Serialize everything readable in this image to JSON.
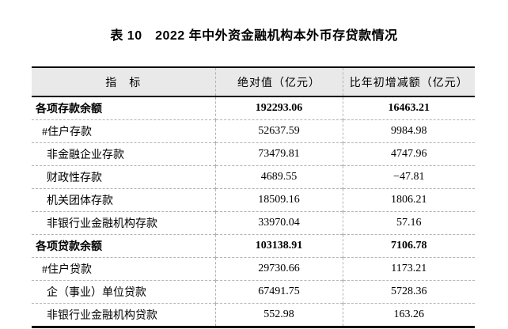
{
  "title": "表 10　2022 年中外资金融机构本外币存贷款情况",
  "table": {
    "headers": [
      "指　标",
      "绝对值（亿元）",
      "比年初增减额（亿元）"
    ],
    "rows": [
      {
        "label": "各项存款余额",
        "absolute": "192293.06",
        "change": "16463.21",
        "bold": true,
        "indent": 0
      },
      {
        "label": "#住户存款",
        "absolute": "52637.59",
        "change": "9984.98",
        "bold": false,
        "indent": 1
      },
      {
        "label": "非金融企业存款",
        "absolute": "73479.81",
        "change": "4747.96",
        "bold": false,
        "indent": 2
      },
      {
        "label": "财政性存款",
        "absolute": "4689.55",
        "change": "−47.81",
        "bold": false,
        "indent": 2
      },
      {
        "label": "机关团体存款",
        "absolute": "18509.16",
        "change": "1806.21",
        "bold": false,
        "indent": 2
      },
      {
        "label": "非银行业金融机构存款",
        "absolute": "33970.04",
        "change": "57.16",
        "bold": false,
        "indent": 2
      },
      {
        "label": "各项贷款余额",
        "absolute": "103138.91",
        "change": "7106.78",
        "bold": true,
        "indent": 0
      },
      {
        "label": "#住户贷款",
        "absolute": "29730.66",
        "change": "1173.21",
        "bold": false,
        "indent": 1
      },
      {
        "label": "企（事业）单位贷款",
        "absolute": "67491.75",
        "change": "5728.36",
        "bold": false,
        "indent": 2
      },
      {
        "label": "非银行业金融机构贷款",
        "absolute": "552.98",
        "change": "163.26",
        "bold": false,
        "indent": 2
      }
    ]
  },
  "chart_data": {
    "type": "table",
    "title": "表 10　2022 年中外资金融机构本外币存贷款情况",
    "columns": [
      "指标",
      "绝对值（亿元）",
      "比年初增减额（亿元）"
    ],
    "rows": [
      [
        "各项存款余额",
        192293.06,
        16463.21
      ],
      [
        "#住户存款",
        52637.59,
        9984.98
      ],
      [
        "非金融企业存款",
        73479.81,
        4747.96
      ],
      [
        "财政性存款",
        4689.55,
        -47.81
      ],
      [
        "机关团体存款",
        18509.16,
        1806.21
      ],
      [
        "非银行业金融机构存款",
        33970.04,
        57.16
      ],
      [
        "各项贷款余额",
        103138.91,
        7106.78
      ],
      [
        "#住户贷款",
        29730.66,
        1173.21
      ],
      [
        "企（事业）单位贷款",
        67491.75,
        5728.36
      ],
      [
        "非银行业金融机构贷款",
        552.98,
        163.26
      ]
    ]
  },
  "colors": {
    "header_bg": "#e9e9e9",
    "solid_border": "#000000",
    "dashed_divider": "#b3b3b3"
  }
}
